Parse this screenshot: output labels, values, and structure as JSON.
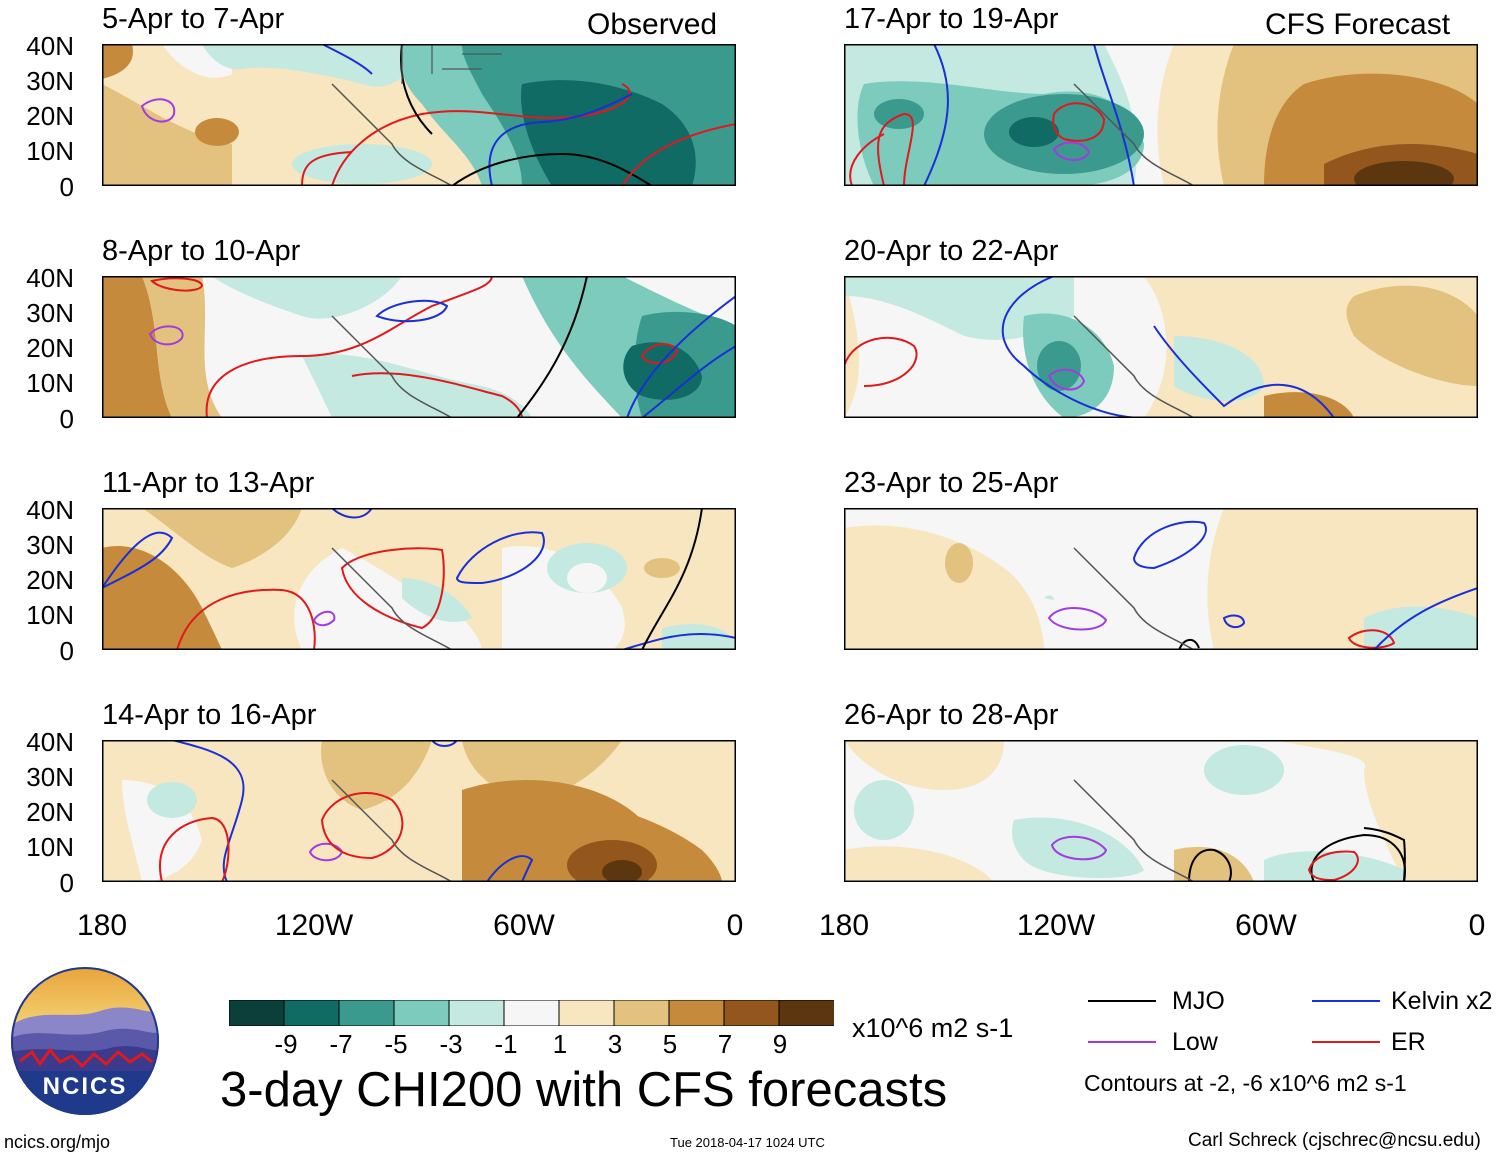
{
  "figure": {
    "main_title": "3-day CHI200 with CFS forecasts",
    "units": "x10^6 m2 s-1",
    "left_header": "Observed",
    "right_header": "CFS Forecast"
  },
  "panels_left": [
    {
      "title": "5-Apr to 7-Apr"
    },
    {
      "title": "8-Apr to 10-Apr"
    },
    {
      "title": "11-Apr to 13-Apr"
    },
    {
      "title": "14-Apr to 16-Apr"
    }
  ],
  "panels_right": [
    {
      "title": "17-Apr to 19-Apr"
    },
    {
      "title": "20-Apr to 22-Apr"
    },
    {
      "title": "23-Apr to 25-Apr"
    },
    {
      "title": "26-Apr to 28-Apr"
    }
  ],
  "y_labels": [
    "40N",
    "30N",
    "20N",
    "10N",
    "0"
  ],
  "x_labels_left": [
    "180",
    "120W",
    "60W",
    "0"
  ],
  "x_labels_right": [
    "180",
    "120W",
    "60W",
    "0"
  ],
  "colorbar": {
    "colors": [
      "#0b3f3a",
      "#0f6b63",
      "#3a9a8e",
      "#7ccbbd",
      "#c4e9e1",
      "#f6f6f6",
      "#f7e6c0",
      "#e3c27f",
      "#c58a3c",
      "#93561c",
      "#5c360e"
    ],
    "labels": [
      "-9",
      "-7",
      "-5",
      "-3",
      "-1",
      "1",
      "3",
      "5",
      "7",
      "9"
    ]
  },
  "legend": {
    "items": [
      {
        "label": "MJO",
        "color": "#000000"
      },
      {
        "label": "Kelvin x2",
        "color": "#1a2fd6"
      },
      {
        "label": "Low",
        "color": "#a23be0"
      },
      {
        "label": "ER",
        "color": "#e0191c"
      }
    ],
    "note": "Contours at -2, -6 x10^6 m2 s-1"
  },
  "logo": {
    "text": "NCICS"
  },
  "footer": {
    "url": "ncics.org/mjo",
    "timestamp": "Tue 2018-04-17 1024 UTC",
    "author": "Carl Schreck (cjschrec@ncsu.edu)"
  }
}
